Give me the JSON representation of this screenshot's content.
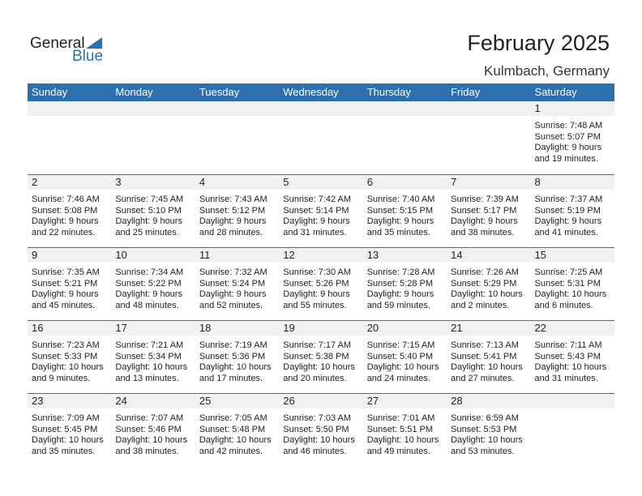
{
  "logo": {
    "general": "General",
    "blue": "Blue"
  },
  "header": {
    "title": "February 2025",
    "location": "Kulmbach, Germany"
  },
  "weekdays": [
    "Sunday",
    "Monday",
    "Tuesday",
    "Wednesday",
    "Thursday",
    "Friday",
    "Saturday"
  ],
  "colors": {
    "header": "#2e6fb0",
    "band": "#f1f1f1"
  },
  "weeks": [
    [
      null,
      null,
      null,
      null,
      null,
      null,
      {
        "day": "1",
        "sunrise": "Sunrise: 7:48 AM",
        "sunset": "Sunset: 5:07 PM",
        "daylight1": "Daylight: 9 hours",
        "daylight2": "and 19 minutes."
      }
    ],
    [
      {
        "day": "2",
        "sunrise": "Sunrise: 7:46 AM",
        "sunset": "Sunset: 5:08 PM",
        "daylight1": "Daylight: 9 hours",
        "daylight2": "and 22 minutes."
      },
      {
        "day": "3",
        "sunrise": "Sunrise: 7:45 AM",
        "sunset": "Sunset: 5:10 PM",
        "daylight1": "Daylight: 9 hours",
        "daylight2": "and 25 minutes."
      },
      {
        "day": "4",
        "sunrise": "Sunrise: 7:43 AM",
        "sunset": "Sunset: 5:12 PM",
        "daylight1": "Daylight: 9 hours",
        "daylight2": "and 28 minutes."
      },
      {
        "day": "5",
        "sunrise": "Sunrise: 7:42 AM",
        "sunset": "Sunset: 5:14 PM",
        "daylight1": "Daylight: 9 hours",
        "daylight2": "and 31 minutes."
      },
      {
        "day": "6",
        "sunrise": "Sunrise: 7:40 AM",
        "sunset": "Sunset: 5:15 PM",
        "daylight1": "Daylight: 9 hours",
        "daylight2": "and 35 minutes."
      },
      {
        "day": "7",
        "sunrise": "Sunrise: 7:39 AM",
        "sunset": "Sunset: 5:17 PM",
        "daylight1": "Daylight: 9 hours",
        "daylight2": "and 38 minutes."
      },
      {
        "day": "8",
        "sunrise": "Sunrise: 7:37 AM",
        "sunset": "Sunset: 5:19 PM",
        "daylight1": "Daylight: 9 hours",
        "daylight2": "and 41 minutes."
      }
    ],
    [
      {
        "day": "9",
        "sunrise": "Sunrise: 7:35 AM",
        "sunset": "Sunset: 5:21 PM",
        "daylight1": "Daylight: 9 hours",
        "daylight2": "and 45 minutes."
      },
      {
        "day": "10",
        "sunrise": "Sunrise: 7:34 AM",
        "sunset": "Sunset: 5:22 PM",
        "daylight1": "Daylight: 9 hours",
        "daylight2": "and 48 minutes."
      },
      {
        "day": "11",
        "sunrise": "Sunrise: 7:32 AM",
        "sunset": "Sunset: 5:24 PM",
        "daylight1": "Daylight: 9 hours",
        "daylight2": "and 52 minutes."
      },
      {
        "day": "12",
        "sunrise": "Sunrise: 7:30 AM",
        "sunset": "Sunset: 5:26 PM",
        "daylight1": "Daylight: 9 hours",
        "daylight2": "and 55 minutes."
      },
      {
        "day": "13",
        "sunrise": "Sunrise: 7:28 AM",
        "sunset": "Sunset: 5:28 PM",
        "daylight1": "Daylight: 9 hours",
        "daylight2": "and 59 minutes."
      },
      {
        "day": "14",
        "sunrise": "Sunrise: 7:26 AM",
        "sunset": "Sunset: 5:29 PM",
        "daylight1": "Daylight: 10 hours",
        "daylight2": "and 2 minutes."
      },
      {
        "day": "15",
        "sunrise": "Sunrise: 7:25 AM",
        "sunset": "Sunset: 5:31 PM",
        "daylight1": "Daylight: 10 hours",
        "daylight2": "and 6 minutes."
      }
    ],
    [
      {
        "day": "16",
        "sunrise": "Sunrise: 7:23 AM",
        "sunset": "Sunset: 5:33 PM",
        "daylight1": "Daylight: 10 hours",
        "daylight2": "and 9 minutes."
      },
      {
        "day": "17",
        "sunrise": "Sunrise: 7:21 AM",
        "sunset": "Sunset: 5:34 PM",
        "daylight1": "Daylight: 10 hours",
        "daylight2": "and 13 minutes."
      },
      {
        "day": "18",
        "sunrise": "Sunrise: 7:19 AM",
        "sunset": "Sunset: 5:36 PM",
        "daylight1": "Daylight: 10 hours",
        "daylight2": "and 17 minutes."
      },
      {
        "day": "19",
        "sunrise": "Sunrise: 7:17 AM",
        "sunset": "Sunset: 5:38 PM",
        "daylight1": "Daylight: 10 hours",
        "daylight2": "and 20 minutes."
      },
      {
        "day": "20",
        "sunrise": "Sunrise: 7:15 AM",
        "sunset": "Sunset: 5:40 PM",
        "daylight1": "Daylight: 10 hours",
        "daylight2": "and 24 minutes."
      },
      {
        "day": "21",
        "sunrise": "Sunrise: 7:13 AM",
        "sunset": "Sunset: 5:41 PM",
        "daylight1": "Daylight: 10 hours",
        "daylight2": "and 27 minutes."
      },
      {
        "day": "22",
        "sunrise": "Sunrise: 7:11 AM",
        "sunset": "Sunset: 5:43 PM",
        "daylight1": "Daylight: 10 hours",
        "daylight2": "and 31 minutes."
      }
    ],
    [
      {
        "day": "23",
        "sunrise": "Sunrise: 7:09 AM",
        "sunset": "Sunset: 5:45 PM",
        "daylight1": "Daylight: 10 hours",
        "daylight2": "and 35 minutes."
      },
      {
        "day": "24",
        "sunrise": "Sunrise: 7:07 AM",
        "sunset": "Sunset: 5:46 PM",
        "daylight1": "Daylight: 10 hours",
        "daylight2": "and 38 minutes."
      },
      {
        "day": "25",
        "sunrise": "Sunrise: 7:05 AM",
        "sunset": "Sunset: 5:48 PM",
        "daylight1": "Daylight: 10 hours",
        "daylight2": "and 42 minutes."
      },
      {
        "day": "26",
        "sunrise": "Sunrise: 7:03 AM",
        "sunset": "Sunset: 5:50 PM",
        "daylight1": "Daylight: 10 hours",
        "daylight2": "and 46 minutes."
      },
      {
        "day": "27",
        "sunrise": "Sunrise: 7:01 AM",
        "sunset": "Sunset: 5:51 PM",
        "daylight1": "Daylight: 10 hours",
        "daylight2": "and 49 minutes."
      },
      {
        "day": "28",
        "sunrise": "Sunrise: 6:59 AM",
        "sunset": "Sunset: 5:53 PM",
        "daylight1": "Daylight: 10 hours",
        "daylight2": "and 53 minutes."
      },
      null
    ]
  ]
}
